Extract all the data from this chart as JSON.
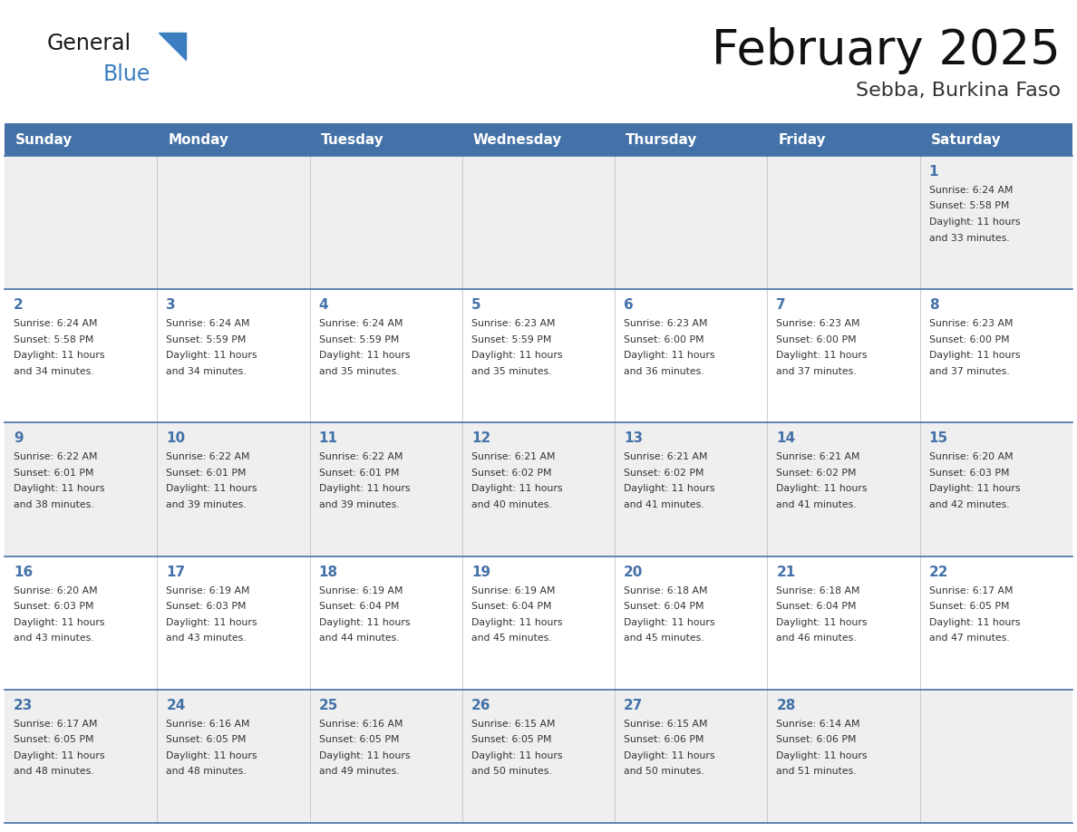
{
  "title": "February 2025",
  "subtitle": "Sebba, Burkina Faso",
  "days_of_week": [
    "Sunday",
    "Monday",
    "Tuesday",
    "Wednesday",
    "Thursday",
    "Friday",
    "Saturday"
  ],
  "header_bg": "#4472A8",
  "header_text": "#FFFFFF",
  "row_bg_light": "#EFEFEF",
  "row_bg_white": "#FFFFFF",
  "cell_text_color": "#333333",
  "day_number_color": "#4472A8",
  "divider_color": "#4472A8",
  "logo_general_color": "#1a1a1a",
  "logo_blue_color": "#3a7ec0",
  "logo_triangle_color": "#3a7ec0",
  "calendar_data": [
    [
      null,
      null,
      null,
      null,
      null,
      null,
      {
        "day": 1,
        "sunrise": "6:24 AM",
        "sunset": "5:58 PM",
        "daylight": "11 hours\nand 33 minutes."
      }
    ],
    [
      {
        "day": 2,
        "sunrise": "6:24 AM",
        "sunset": "5:58 PM",
        "daylight": "11 hours\nand 34 minutes."
      },
      {
        "day": 3,
        "sunrise": "6:24 AM",
        "sunset": "5:59 PM",
        "daylight": "11 hours\nand 34 minutes."
      },
      {
        "day": 4,
        "sunrise": "6:24 AM",
        "sunset": "5:59 PM",
        "daylight": "11 hours\nand 35 minutes."
      },
      {
        "day": 5,
        "sunrise": "6:23 AM",
        "sunset": "5:59 PM",
        "daylight": "11 hours\nand 35 minutes."
      },
      {
        "day": 6,
        "sunrise": "6:23 AM",
        "sunset": "6:00 PM",
        "daylight": "11 hours\nand 36 minutes."
      },
      {
        "day": 7,
        "sunrise": "6:23 AM",
        "sunset": "6:00 PM",
        "daylight": "11 hours\nand 37 minutes."
      },
      {
        "day": 8,
        "sunrise": "6:23 AM",
        "sunset": "6:00 PM",
        "daylight": "11 hours\nand 37 minutes."
      }
    ],
    [
      {
        "day": 9,
        "sunrise": "6:22 AM",
        "sunset": "6:01 PM",
        "daylight": "11 hours\nand 38 minutes."
      },
      {
        "day": 10,
        "sunrise": "6:22 AM",
        "sunset": "6:01 PM",
        "daylight": "11 hours\nand 39 minutes."
      },
      {
        "day": 11,
        "sunrise": "6:22 AM",
        "sunset": "6:01 PM",
        "daylight": "11 hours\nand 39 minutes."
      },
      {
        "day": 12,
        "sunrise": "6:21 AM",
        "sunset": "6:02 PM",
        "daylight": "11 hours\nand 40 minutes."
      },
      {
        "day": 13,
        "sunrise": "6:21 AM",
        "sunset": "6:02 PM",
        "daylight": "11 hours\nand 41 minutes."
      },
      {
        "day": 14,
        "sunrise": "6:21 AM",
        "sunset": "6:02 PM",
        "daylight": "11 hours\nand 41 minutes."
      },
      {
        "day": 15,
        "sunrise": "6:20 AM",
        "sunset": "6:03 PM",
        "daylight": "11 hours\nand 42 minutes."
      }
    ],
    [
      {
        "day": 16,
        "sunrise": "6:20 AM",
        "sunset": "6:03 PM",
        "daylight": "11 hours\nand 43 minutes."
      },
      {
        "day": 17,
        "sunrise": "6:19 AM",
        "sunset": "6:03 PM",
        "daylight": "11 hours\nand 43 minutes."
      },
      {
        "day": 18,
        "sunrise": "6:19 AM",
        "sunset": "6:04 PM",
        "daylight": "11 hours\nand 44 minutes."
      },
      {
        "day": 19,
        "sunrise": "6:19 AM",
        "sunset": "6:04 PM",
        "daylight": "11 hours\nand 45 minutes."
      },
      {
        "day": 20,
        "sunrise": "6:18 AM",
        "sunset": "6:04 PM",
        "daylight": "11 hours\nand 45 minutes."
      },
      {
        "day": 21,
        "sunrise": "6:18 AM",
        "sunset": "6:04 PM",
        "daylight": "11 hours\nand 46 minutes."
      },
      {
        "day": 22,
        "sunrise": "6:17 AM",
        "sunset": "6:05 PM",
        "daylight": "11 hours\nand 47 minutes."
      }
    ],
    [
      {
        "day": 23,
        "sunrise": "6:17 AM",
        "sunset": "6:05 PM",
        "daylight": "11 hours\nand 48 minutes."
      },
      {
        "day": 24,
        "sunrise": "6:16 AM",
        "sunset": "6:05 PM",
        "daylight": "11 hours\nand 48 minutes."
      },
      {
        "day": 25,
        "sunrise": "6:16 AM",
        "sunset": "6:05 PM",
        "daylight": "11 hours\nand 49 minutes."
      },
      {
        "day": 26,
        "sunrise": "6:15 AM",
        "sunset": "6:05 PM",
        "daylight": "11 hours\nand 50 minutes."
      },
      {
        "day": 27,
        "sunrise": "6:15 AM",
        "sunset": "6:06 PM",
        "daylight": "11 hours\nand 50 minutes."
      },
      {
        "day": 28,
        "sunrise": "6:14 AM",
        "sunset": "6:06 PM",
        "daylight": "11 hours\nand 51 minutes."
      },
      null
    ]
  ]
}
